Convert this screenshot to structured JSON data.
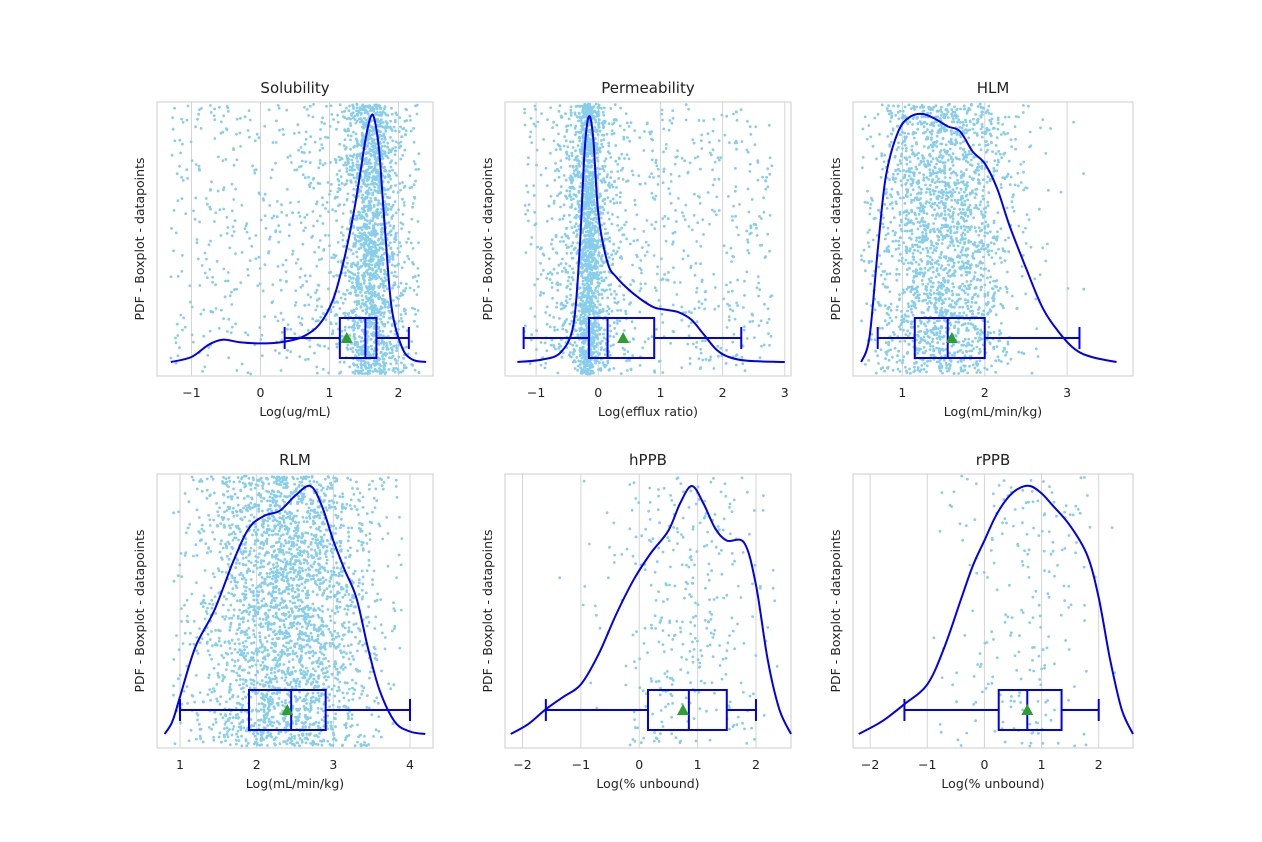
{
  "chart_data": [
    {
      "type": "scatter",
      "title": "Solubility",
      "xlabel": "Log(ug/mL)",
      "ylabel": "PDF - Boxplot - datapoints",
      "xlim": [
        -1.5,
        2.5
      ],
      "xticks": [
        -1,
        0,
        1,
        2
      ],
      "xtick_labels": [
        "−1",
        "0",
        "1",
        "2"
      ],
      "grid": true,
      "box": {
        "whisker_low": 0.35,
        "q1": 1.15,
        "median": 1.52,
        "q3": 1.68,
        "whisker_high": 2.15,
        "mean": 1.25
      },
      "kde": {
        "x": [
          -1.3,
          -1.0,
          -0.75,
          -0.55,
          -0.3,
          0.0,
          0.3,
          0.6,
          0.85,
          1.05,
          1.2,
          1.35,
          1.45,
          1.53,
          1.6,
          1.65,
          1.72,
          1.8,
          1.9,
          2.05,
          2.2,
          2.4
        ],
        "y": [
          0.0,
          0.02,
          0.07,
          0.09,
          0.08,
          0.075,
          0.08,
          0.1,
          0.15,
          0.25,
          0.4,
          0.6,
          0.77,
          0.91,
          0.99,
          0.98,
          0.85,
          0.55,
          0.22,
          0.06,
          0.01,
          0.0
        ]
      },
      "points": {
        "count": 2400,
        "spread_center": 1.6,
        "spread_sd": 0.18,
        "share_in_peak": 0.55,
        "range": [
          -1.3,
          2.3
        ]
      }
    },
    {
      "type": "scatter",
      "title": "Permeability",
      "xlabel": "Log(efflux ratio)",
      "ylabel": "PDF - Boxplot - datapoints",
      "xlim": [
        -1.5,
        3.1
      ],
      "xticks": [
        -1,
        0,
        1,
        2,
        3
      ],
      "xtick_labels": [
        "−1",
        "0",
        "1",
        "2",
        "3"
      ],
      "grid": true,
      "box": {
        "whisker_low": -1.2,
        "q1": -0.15,
        "median": 0.15,
        "q3": 0.9,
        "whisker_high": 2.3,
        "mean": 0.4
      },
      "kde": {
        "x": [
          -1.3,
          -0.9,
          -0.6,
          -0.4,
          -0.3,
          -0.22,
          -0.15,
          -0.08,
          0.0,
          0.15,
          0.3,
          0.5,
          0.7,
          0.9,
          1.1,
          1.3,
          1.5,
          1.7,
          1.9,
          2.1,
          2.4,
          3.0
        ],
        "y": [
          0.0,
          0.01,
          0.04,
          0.15,
          0.45,
          0.85,
          0.99,
          0.9,
          0.6,
          0.4,
          0.34,
          0.29,
          0.25,
          0.22,
          0.21,
          0.2,
          0.17,
          0.11,
          0.05,
          0.02,
          0.005,
          0.0
        ]
      },
      "points": {
        "count": 2400,
        "spread_center": -0.15,
        "spread_sd": 0.09,
        "share_in_peak": 0.4,
        "range": [
          -1.2,
          2.8
        ]
      }
    },
    {
      "type": "scatter",
      "title": "HLM",
      "xlabel": "Log(mL/min/kg)",
      "ylabel": "PDF - Boxplot - datapoints",
      "xlim": [
        0.4,
        3.8
      ],
      "xticks": [
        1,
        2,
        3
      ],
      "xtick_labels": [
        "1",
        "2",
        "3"
      ],
      "grid": true,
      "box": {
        "whisker_low": 0.7,
        "q1": 1.15,
        "median": 1.55,
        "q3": 2.0,
        "whisker_high": 3.15,
        "mean": 1.6
      },
      "kde": {
        "x": [
          0.5,
          0.6,
          0.7,
          0.8,
          0.95,
          1.1,
          1.25,
          1.4,
          1.55,
          1.7,
          1.85,
          2.0,
          2.15,
          2.3,
          2.5,
          2.7,
          2.9,
          3.1,
          3.3,
          3.6
        ],
        "y": [
          0.0,
          0.1,
          0.45,
          0.75,
          0.93,
          0.99,
          1.0,
          0.98,
          0.95,
          0.93,
          0.85,
          0.8,
          0.7,
          0.55,
          0.38,
          0.22,
          0.12,
          0.05,
          0.02,
          0.0
        ]
      },
      "points": {
        "count": 2200,
        "spread_center": 1.5,
        "spread_sd": 0.45,
        "share_in_peak": 0.0,
        "range": [
          0.5,
          3.6
        ]
      }
    },
    {
      "type": "scatter",
      "title": "RLM",
      "xlabel": "Log(mL/min/kg)",
      "ylabel": "PDF - Boxplot - datapoints",
      "xlim": [
        0.7,
        4.3
      ],
      "xticks": [
        1,
        2,
        3,
        4
      ],
      "xtick_labels": [
        "1",
        "2",
        "3",
        "4"
      ],
      "grid": true,
      "box": {
        "whisker_low": 1.0,
        "q1": 1.9,
        "median": 2.45,
        "q3": 2.9,
        "whisker_high": 4.0,
        "mean": 2.4
      },
      "kde": {
        "x": [
          0.8,
          0.9,
          1.0,
          1.2,
          1.45,
          1.7,
          1.9,
          2.1,
          2.3,
          2.5,
          2.7,
          2.85,
          3.0,
          3.15,
          3.3,
          3.45,
          3.6,
          3.8,
          4.0,
          4.2
        ],
        "y": [
          0.0,
          0.05,
          0.15,
          0.35,
          0.5,
          0.7,
          0.83,
          0.88,
          0.9,
          0.96,
          1.0,
          0.92,
          0.78,
          0.66,
          0.55,
          0.35,
          0.18,
          0.05,
          0.01,
          0.0
        ]
      },
      "points": {
        "count": 2800,
        "spread_center": 2.4,
        "spread_sd": 0.6,
        "share_in_peak": 0.0,
        "range": [
          0.9,
          3.9
        ]
      }
    },
    {
      "type": "scatter",
      "title": "hPPB",
      "xlabel": "Log(% unbound)",
      "ylabel": "PDF - Boxplot - datapoints",
      "xlim": [
        -2.3,
        2.6
      ],
      "xticks": [
        -2,
        -1,
        0,
        1,
        2
      ],
      "xtick_labels": [
        "−2",
        "−1",
        "0",
        "1",
        "2"
      ],
      "grid": true,
      "box": {
        "whisker_low": -1.6,
        "q1": 0.15,
        "median": 0.85,
        "q3": 1.5,
        "whisker_high": 2.0,
        "mean": 0.75
      },
      "kde": {
        "x": [
          -2.2,
          -1.9,
          -1.6,
          -1.3,
          -1.0,
          -0.7,
          -0.4,
          -0.1,
          0.2,
          0.5,
          0.7,
          0.9,
          1.1,
          1.3,
          1.5,
          1.8,
          2.0,
          2.2,
          2.4,
          2.6
        ],
        "y": [
          0.0,
          0.04,
          0.1,
          0.15,
          0.2,
          0.32,
          0.48,
          0.62,
          0.73,
          0.82,
          0.93,
          1.0,
          0.93,
          0.83,
          0.78,
          0.77,
          0.6,
          0.3,
          0.1,
          0.0
        ]
      },
      "points": {
        "count": 350,
        "spread_center": 0.8,
        "spread_sd": 0.7,
        "share_in_peak": 0.0,
        "range": [
          -2.0,
          2.4
        ]
      }
    },
    {
      "type": "scatter",
      "title": "rPPB",
      "xlabel": "Log(% unbound)",
      "ylabel": "PDF - Boxplot - datapoints",
      "xlim": [
        -2.3,
        2.6
      ],
      "xticks": [
        -2,
        -1,
        0,
        1,
        2
      ],
      "xtick_labels": [
        "−2",
        "−1",
        "0",
        "1",
        "2"
      ],
      "grid": true,
      "box": {
        "whisker_low": -1.4,
        "q1": 0.25,
        "median": 0.75,
        "q3": 1.35,
        "whisker_high": 2.0,
        "mean": 0.75
      },
      "kde": {
        "x": [
          -2.2,
          -1.8,
          -1.4,
          -1.0,
          -0.7,
          -0.4,
          -0.2,
          0.0,
          0.2,
          0.4,
          0.6,
          0.8,
          1.0,
          1.2,
          1.5,
          1.8,
          2.0,
          2.2,
          2.4,
          2.6
        ],
        "y": [
          0.0,
          0.05,
          0.12,
          0.2,
          0.35,
          0.55,
          0.68,
          0.78,
          0.88,
          0.95,
          0.99,
          1.0,
          0.97,
          0.92,
          0.84,
          0.72,
          0.55,
          0.3,
          0.1,
          0.0
        ]
      },
      "points": {
        "count": 220,
        "spread_center": 0.7,
        "spread_sd": 0.7,
        "share_in_peak": 0.0,
        "range": [
          -2.0,
          2.3
        ]
      }
    }
  ]
}
